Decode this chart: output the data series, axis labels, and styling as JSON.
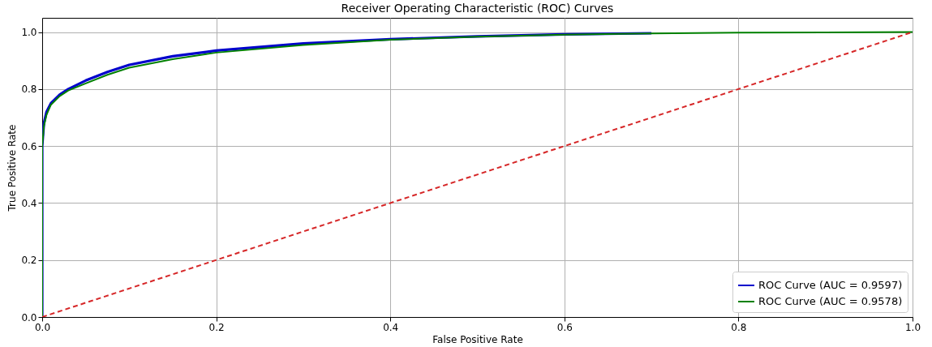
{
  "chart_data": {
    "type": "line",
    "title": "Receiver Operating Characteristic (ROC) Curves",
    "xlabel": "False Positive Rate",
    "ylabel": "True Positive Rate",
    "xlim": [
      0,
      1
    ],
    "ylim": [
      0,
      1.05
    ],
    "xticks": [
      {
        "value": 0,
        "label": "0.0"
      },
      0.2,
      0.4,
      0.6,
      0.8,
      {
        "value": 1,
        "label": "1.0"
      }
    ],
    "yticks": [
      {
        "value": 0,
        "label": "0.0"
      },
      0.2,
      0.4,
      0.6,
      0.8,
      {
        "value": 1,
        "label": "1.0"
      }
    ],
    "grid": true,
    "legend": "bottom right",
    "line_style": "solid",
    "marker": "none",
    "series": [
      {
        "name": "ROC Curve (AUC = 0.9597)",
        "color": "#0000cc",
        "x": [
          0,
          0,
          0.002,
          0.005,
          0.01,
          0.02,
          0.03,
          0.05,
          0.075,
          0.1,
          0.15,
          0.2,
          0.3,
          0.4,
          0.5,
          0.6,
          0.7
        ],
        "values": [
          0,
          0.6,
          0.68,
          0.72,
          0.75,
          0.78,
          0.8,
          0.83,
          0.86,
          0.885,
          0.915,
          0.935,
          0.96,
          0.975,
          0.985,
          0.992,
          0.996
        ]
      },
      {
        "name": "ROC Curve (AUC = 0.9578)",
        "color": "#008000",
        "x": [
          0,
          0,
          0.002,
          0.005,
          0.01,
          0.02,
          0.03,
          0.05,
          0.075,
          0.1,
          0.15,
          0.2,
          0.3,
          0.4,
          0.5,
          0.6,
          0.7,
          0.8,
          1
        ],
        "values": [
          0,
          0.6,
          0.67,
          0.71,
          0.745,
          0.775,
          0.795,
          0.82,
          0.85,
          0.875,
          0.905,
          0.928,
          0.955,
          0.973,
          0.984,
          0.991,
          0.995,
          0.998,
          1
        ]
      },
      {
        "color": "#d62728",
        "line_style": "dashed",
        "x": [
          0,
          1
        ],
        "values": [
          0,
          1
        ]
      }
    ]
  }
}
